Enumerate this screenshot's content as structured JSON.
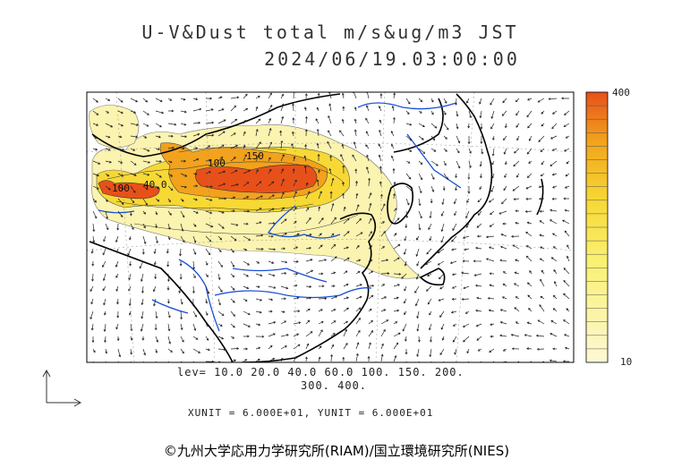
{
  "title_line1": "U-V&Dust total m/s&ug/m3 JST",
  "title_line2": "2024/06/19.03:00:00",
  "levels_line1": "lev= 10.0 20.0 40.0 60.0 100. 150. 200.",
  "levels_line2": "300. 400.",
  "unit_text": "XUNIT = 6.000E+01, YUNIT = 6.000E+01",
  "colorbar": {
    "max_label": "400",
    "min_label": "10"
  },
  "contour_labels": [
    "100",
    "150",
    "100",
    "40.0"
  ],
  "copyright": "©九州大学応用力学研究所(RIAM)/国立環境研究所(NIES)",
  "colors": {
    "high": "#e8501a",
    "orange": "#f2a21c",
    "yellow": "#f7d835",
    "pale": "#fbf3b0",
    "rivers": "#1a4fd6"
  }
}
